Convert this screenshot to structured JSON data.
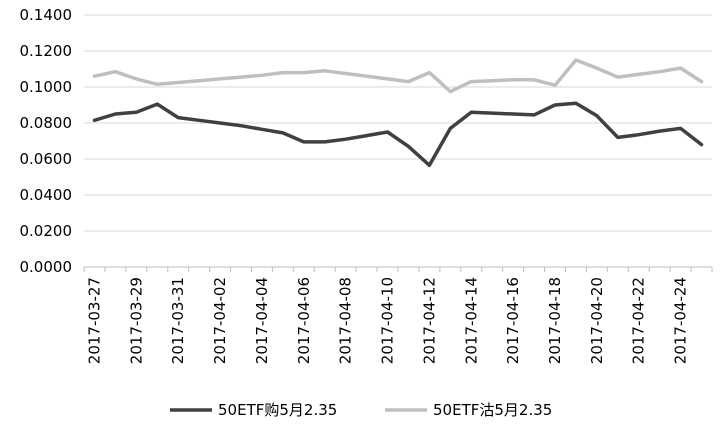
{
  "chart_data": {
    "type": "line",
    "title": "",
    "xlabel": "",
    "ylabel": "",
    "ylim": [
      0,
      0.14
    ],
    "yticks": [
      "0.0000",
      "0.0200",
      "0.0400",
      "0.0600",
      "0.0800",
      "0.1000",
      "0.1200",
      "0.1400"
    ],
    "grid": "horizontal",
    "legend_position": "bottom",
    "x": [
      "2017-03-27",
      "2017-03-28",
      "2017-03-29",
      "2017-03-30",
      "2017-03-31",
      "2017-04-01",
      "2017-04-02",
      "2017-04-03",
      "2017-04-04",
      "2017-04-05",
      "2017-04-06",
      "2017-04-07",
      "2017-04-08",
      "2017-04-09",
      "2017-04-10",
      "2017-04-11",
      "2017-04-12",
      "2017-04-13",
      "2017-04-14",
      "2017-04-15",
      "2017-04-16",
      "2017-04-17",
      "2017-04-18",
      "2017-04-19",
      "2017-04-20",
      "2017-04-21",
      "2017-04-22",
      "2017-04-23",
      "2017-04-24",
      "2017-04-25"
    ],
    "xtick_labels": [
      "2017-03-27",
      "2017-03-29",
      "2017-03-31",
      "2017-04-02",
      "2017-04-04",
      "2017-04-06",
      "2017-04-08",
      "2017-04-10",
      "2017-04-12",
      "2017-04-14",
      "2017-04-16",
      "2017-04-18",
      "2017-04-20",
      "2017-04-22",
      "2017-04-24"
    ],
    "series": [
      {
        "name": "50ETF购5月2.35",
        "color": "#404040",
        "values": [
          0.0815,
          0.085,
          0.086,
          0.0905,
          0.083,
          0.0815,
          0.08,
          0.0785,
          0.0765,
          0.0745,
          0.0695,
          0.0695,
          0.071,
          0.073,
          0.075,
          0.067,
          0.0565,
          0.077,
          0.086,
          0.0855,
          0.085,
          0.0845,
          0.09,
          0.091,
          0.084,
          0.072,
          0.0735,
          0.0755,
          0.077,
          0.068
        ]
      },
      {
        "name": "50ETF沽5月2.35",
        "color": "#bfbfbf",
        "values": [
          0.106,
          0.1085,
          0.1045,
          0.1015,
          0.1025,
          0.1035,
          0.1045,
          0.1055,
          0.1065,
          0.108,
          0.108,
          0.109,
          0.1075,
          0.106,
          0.1045,
          0.103,
          0.108,
          0.0975,
          0.103,
          0.1035,
          0.104,
          0.104,
          0.101,
          0.115,
          0.1105,
          0.1055,
          0.107,
          0.1085,
          0.1105,
          0.103
        ]
      }
    ]
  }
}
